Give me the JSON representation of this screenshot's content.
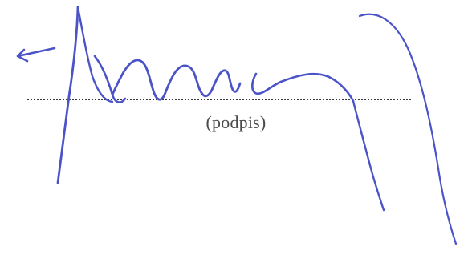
{
  "signature_field": {
    "caption": "(podpis)"
  },
  "colors": {
    "ink": "#4b53c9",
    "dotted_line": "#3a3a3a",
    "caption_text": "#4a4a4a",
    "background": "#ffffff"
  }
}
